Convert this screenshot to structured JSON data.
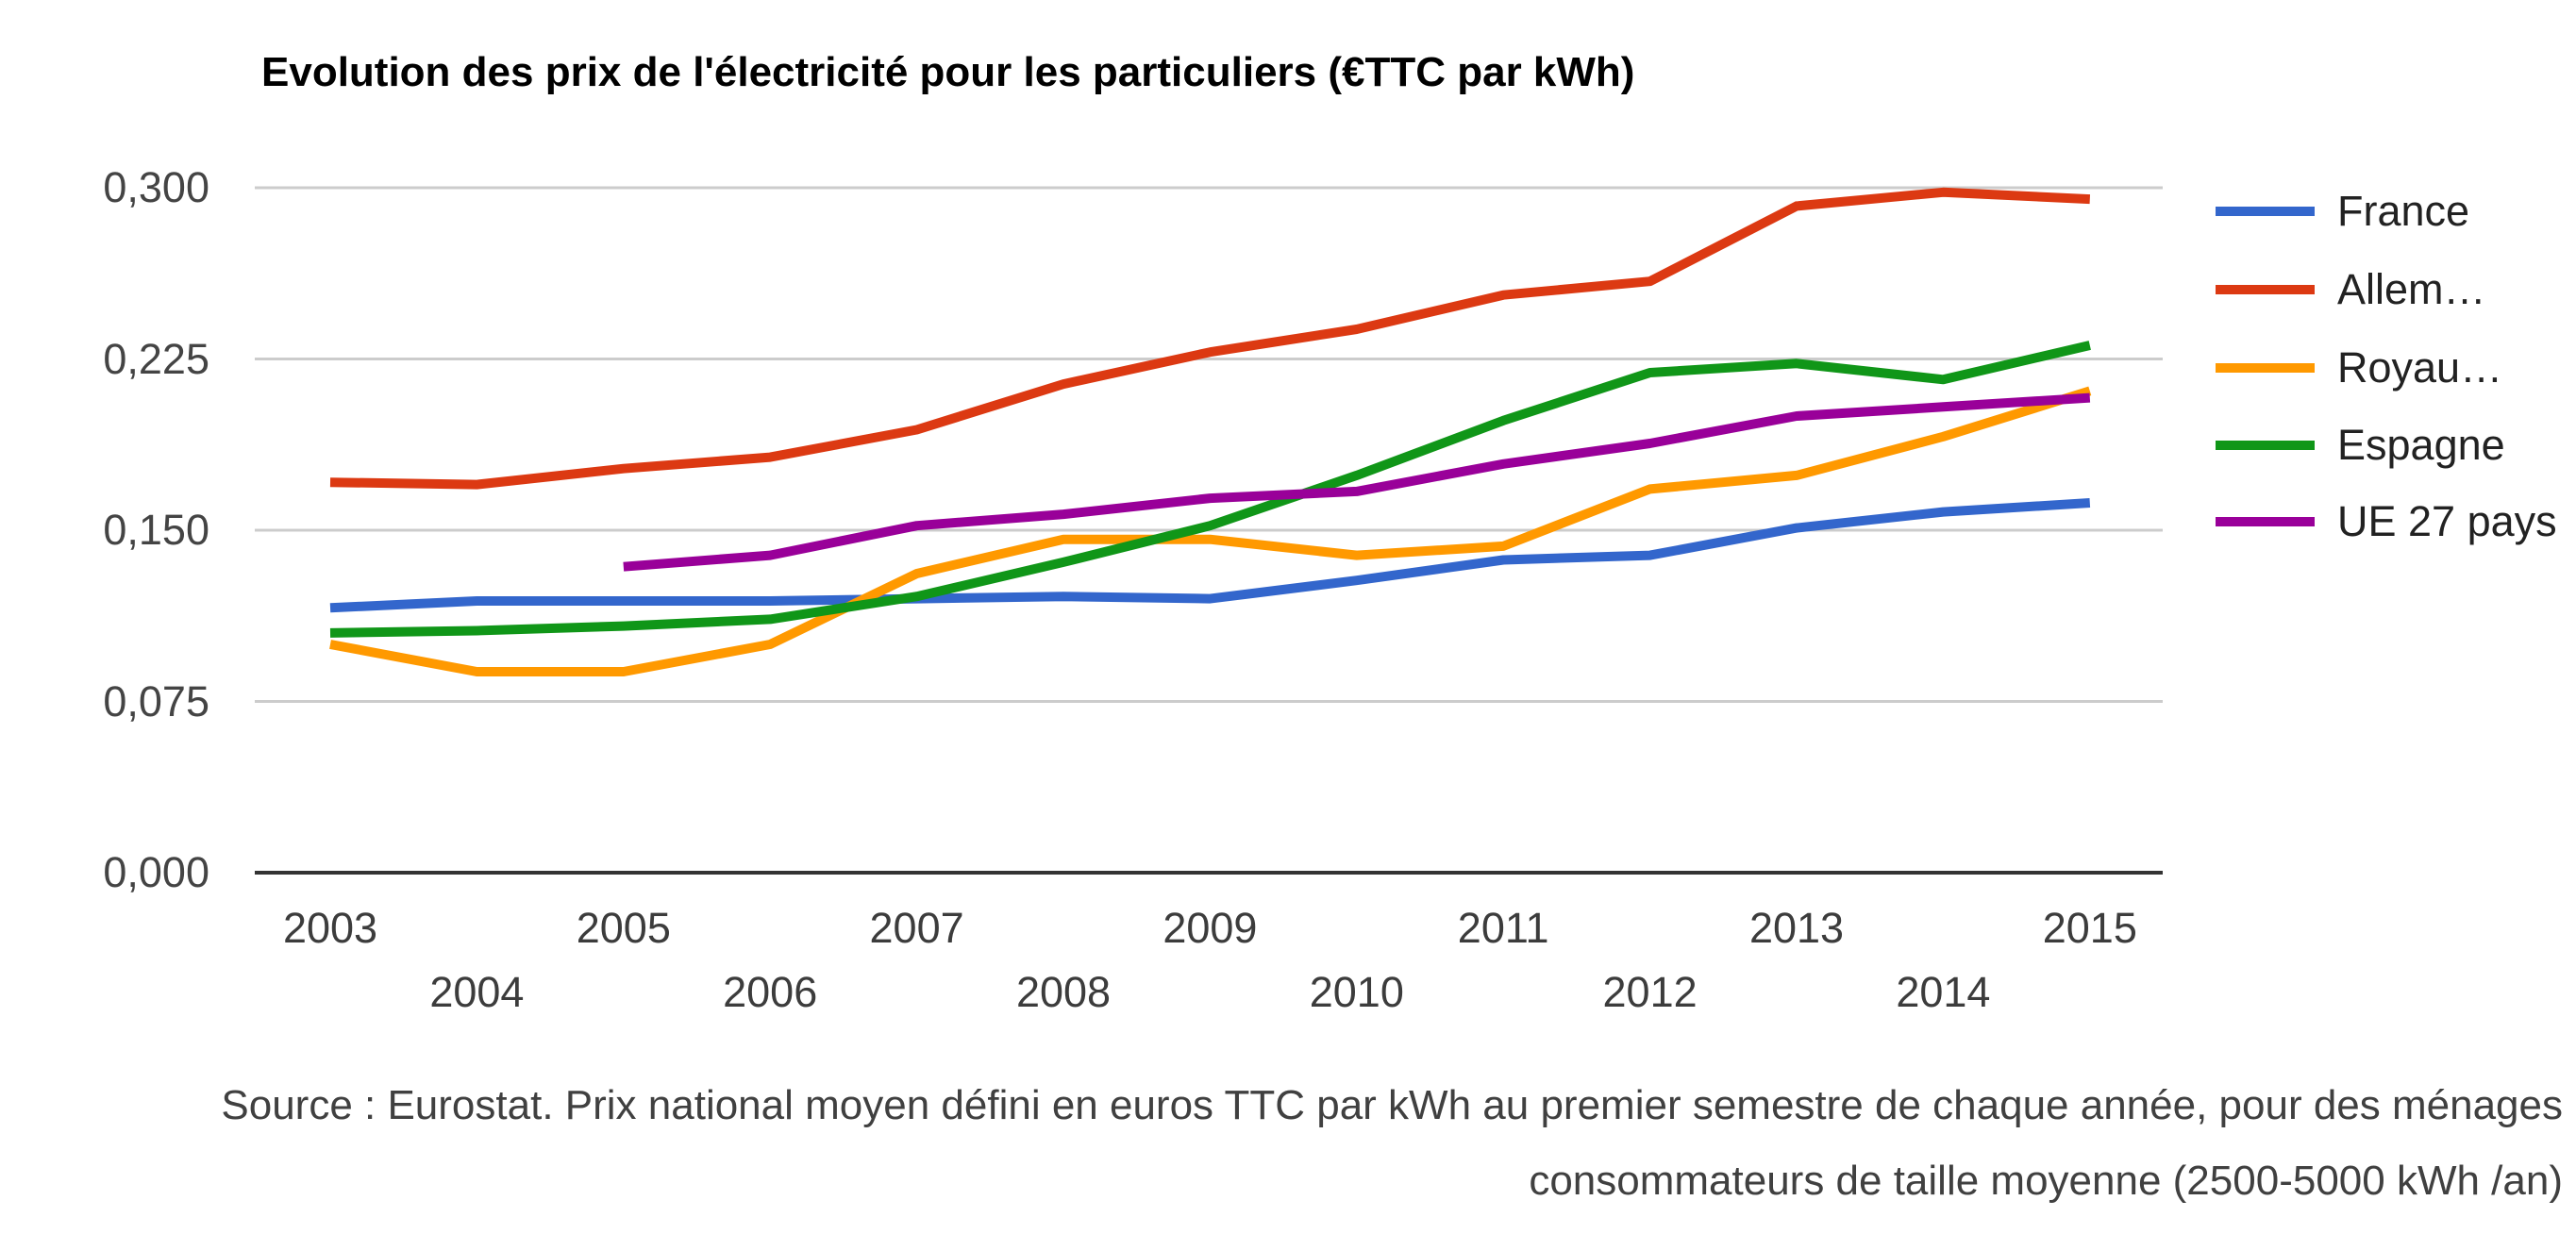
{
  "title": "Evolution des prix de l'électricité pour les particuliers (€TTC par kWh)",
  "source": {
    "line1": "Source : Eurostat. Prix national moyen défini en euros TTC par kWh au premier semestre de chaque année, pour des ménages",
    "line2": "consommateurs de taille moyenne (2500-5000 kWh /an)"
  },
  "colors": {
    "gridline": "#cccccc",
    "axis_line": "#333333",
    "title_text": "#000000",
    "tick_text": "#444444",
    "legend_text": "#222222",
    "source_text": "#404040"
  },
  "chart_data": {
    "type": "line",
    "x": [
      2003,
      2004,
      2005,
      2006,
      2007,
      2008,
      2009,
      2010,
      2011,
      2012,
      2013,
      2014,
      2015
    ],
    "series": [
      {
        "name": "France",
        "color": "#3366CC",
        "values": [
          0.116,
          0.119,
          0.119,
          0.119,
          0.12,
          0.121,
          0.12,
          0.128,
          0.137,
          0.139,
          0.151,
          0.158,
          0.162
        ]
      },
      {
        "name": "Allem…",
        "color": "#DC3912",
        "values": [
          0.171,
          0.17,
          0.177,
          0.182,
          0.194,
          0.214,
          0.228,
          0.238,
          0.253,
          0.259,
          0.292,
          0.298,
          0.295
        ]
      },
      {
        "name": "Royau…",
        "color": "#FF9900",
        "values": [
          0.1,
          0.088,
          0.088,
          0.1,
          0.131,
          0.146,
          0.146,
          0.139,
          0.143,
          0.168,
          0.174,
          0.191,
          0.211
        ]
      },
      {
        "name": "Espagne",
        "color": "#109618",
        "values": [
          0.105,
          0.106,
          0.108,
          0.111,
          0.121,
          0.136,
          0.152,
          0.174,
          0.198,
          0.219,
          0.223,
          0.216,
          0.231
        ]
      },
      {
        "name": "UE 27 pays",
        "color": "#990099",
        "values": [
          null,
          null,
          0.134,
          0.139,
          0.152,
          0.157,
          0.164,
          0.167,
          0.179,
          0.188,
          0.2,
          0.204,
          0.208
        ]
      }
    ],
    "ylabel": "",
    "xlabel": "",
    "ylim": [
      0.0,
      0.3
    ],
    "y_ticks": [
      0.0,
      0.075,
      0.15,
      0.225,
      0.3
    ],
    "y_tick_labels": [
      "0,000",
      "0,075",
      "0,150",
      "0,225",
      "0,300"
    ],
    "grid": true,
    "legend_position": "right"
  }
}
